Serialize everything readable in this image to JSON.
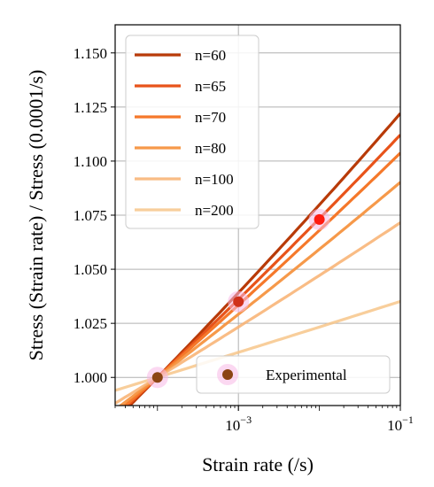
{
  "chart_data": {
    "type": "line",
    "xlabel": "Strain rate (/s)",
    "ylabel": "Stress (Strain rate) / Stress (0.0001/s)",
    "xscale": "log",
    "xlim": [
      3e-05,
      0.1
    ],
    "ylim": [
      0.987,
      1.163
    ],
    "x_ticks": [
      {
        "value": 0.001,
        "base": "10",
        "exp": "−3"
      },
      {
        "value": 0.1,
        "base": "10",
        "exp": "−1"
      }
    ],
    "y_ticks": [
      {
        "value": 1.0,
        "label": "1.000"
      },
      {
        "value": 1.025,
        "label": "1.025"
      },
      {
        "value": 1.05,
        "label": "1.050"
      },
      {
        "value": 1.075,
        "label": "1.075"
      },
      {
        "value": 1.1,
        "label": "1.100"
      },
      {
        "value": 1.125,
        "label": "1.125"
      },
      {
        "value": 1.15,
        "label": "1.150"
      }
    ],
    "grid": true,
    "legend_position": "upper-left",
    "series": [
      {
        "name": "n=60",
        "exponent": 60,
        "color": "#b83a08",
        "alpha": 1.0
      },
      {
        "name": "n=65",
        "exponent": 65,
        "color": "#e8531a",
        "alpha": 1.0
      },
      {
        "name": "n=70",
        "exponent": 70,
        "color": "#f5782a",
        "alpha": 1.0
      },
      {
        "name": "n=80",
        "exponent": 80,
        "color": "#f59340",
        "alpha": 0.95
      },
      {
        "name": "n=100",
        "exponent": 100,
        "color": "#f8b070",
        "alpha": 0.85
      },
      {
        "name": "n=200",
        "exponent": 200,
        "color": "#f7c68a",
        "alpha": 0.85
      }
    ],
    "reference_rate": 0.0001,
    "experimental": {
      "name": "Experimental",
      "color": "#8b4513",
      "points": [
        {
          "x": 0.0001,
          "y": 1.0,
          "color": "#8b4513"
        },
        {
          "x": 0.001,
          "y": 1.035,
          "color": "#d0301a"
        },
        {
          "x": 0.01,
          "y": 1.073,
          "color": "#ff1a10"
        }
      ]
    }
  }
}
